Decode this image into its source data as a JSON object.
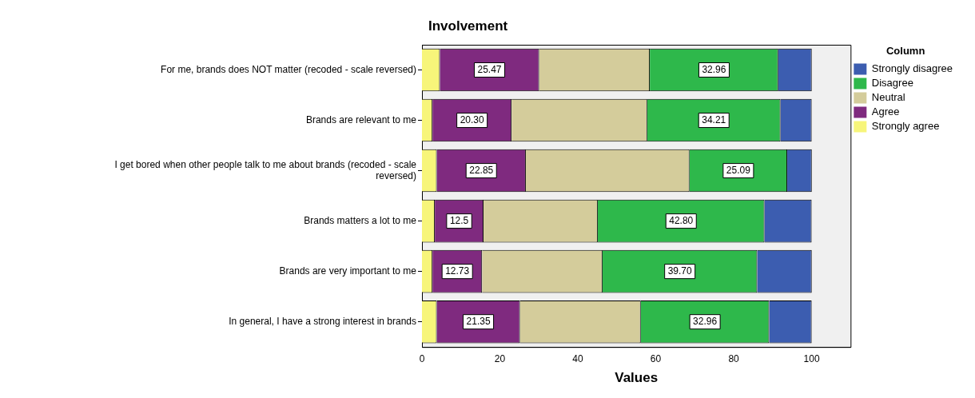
{
  "chart_data": {
    "type": "bar",
    "orientation": "horizontal",
    "stacked": true,
    "title": "Involvement",
    "xlabel": "Values",
    "legend_title": "Column",
    "legend": "top right",
    "grid": false,
    "categories": [
      "For me, brands does NOT matter (recoded - scale reversed)",
      "Brands are relevant to me",
      "I get bored when other people talk to me about brands (recoded - scale reversed)",
      "Brands matters a lot to me",
      "Brands are very important to me",
      "In general, I have a strong interest in brands"
    ],
    "xlim": [
      0,
      110
    ],
    "xticks": [
      0,
      20,
      40,
      60,
      80,
      100
    ],
    "series": [
      {
        "name": "Strongly agree",
        "color": "#f7f57a",
        "values": [
          4.6,
          2.7,
          3.8,
          3.3,
          2.7,
          3.8
        ]
      },
      {
        "name": "Agree",
        "color": "#7f2a7f",
        "values": [
          25.47,
          20.3,
          22.85,
          12.5,
          12.73,
          21.35
        ],
        "value_labels": [
          "25.47",
          "20.30",
          "22.85",
          "12.5",
          "12.73",
          "21.35"
        ]
      },
      {
        "name": "Neutral",
        "color": "#d4cc9b",
        "values": [
          28.4,
          34.8,
          42.0,
          29.3,
          30.9,
          31.0
        ]
      },
      {
        "name": "Disagree",
        "color": "#2eb84b",
        "values": [
          32.96,
          34.21,
          25.09,
          42.8,
          39.7,
          32.96
        ],
        "value_labels": [
          "32.96",
          "34.21",
          "25.09",
          "42.80",
          "39.70",
          "32.96"
        ]
      },
      {
        "name": "Strongly disagree",
        "color": "#3c5db0",
        "values": [
          8.6,
          8.0,
          6.3,
          12.1,
          14.0,
          10.9
        ]
      }
    ]
  }
}
